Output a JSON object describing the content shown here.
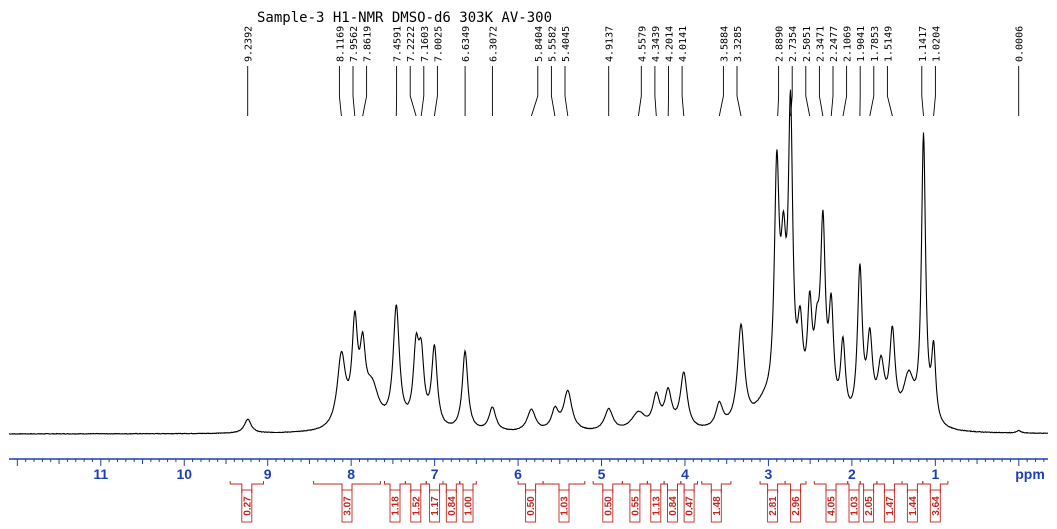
{
  "chart_data": {
    "type": "line",
    "title": "Sample-3   H1-NMR DMSO-d6 303K AV-300",
    "xlabel": "ppm",
    "ylabel": "",
    "xlim": [
      12.1,
      -0.35
    ],
    "x_reversed": true,
    "grid": false,
    "x_major_ticks": [
      "11",
      "10",
      "9",
      "8",
      "7",
      "6",
      "5",
      "4",
      "3",
      "2",
      "1",
      "ppm"
    ],
    "x_major_tick_values": [
      11,
      10,
      9,
      8,
      7,
      6,
      5,
      4,
      3,
      2,
      1
    ],
    "peak_labels": [
      "9.2392",
      "8.1169",
      "7.9562",
      "7.8619",
      "7.4591",
      "7.2222",
      "7.1603",
      "7.0025",
      "6.6349",
      "6.3072",
      "5.8404",
      "5.5582",
      "5.4045",
      "4.9137",
      "4.5579",
      "4.3439",
      "4.2014",
      "4.0141",
      "3.5884",
      "3.3285",
      "2.8890",
      "2.7354",
      "2.5051",
      "2.3471",
      "2.2477",
      "2.1069",
      "1.9041",
      "1.7853",
      "1.5149",
      "1.1417",
      "1.0204",
      "0.0006"
    ],
    "peak_label_groups": [
      [
        9.2392
      ],
      [
        8.1169,
        7.9562,
        7.8619
      ],
      [
        7.4591,
        7.2222,
        7.1603,
        7.0025
      ],
      [
        6.6349
      ],
      [
        6.3072
      ],
      [
        5.8404,
        5.5582,
        5.4045
      ],
      [
        4.9137
      ],
      [
        4.5579,
        4.3439,
        4.2014,
        4.0141
      ],
      [
        3.5884,
        3.3285
      ],
      [
        2.889,
        2.7354,
        2.5051,
        2.3471,
        2.2477,
        2.1069,
        1.9041,
        1.7853,
        1.5149
      ],
      [
        1.1417,
        1.0204
      ],
      [
        0.0006
      ]
    ],
    "integrals": [
      "0.27",
      "3.07",
      "1.18",
      "1.52",
      "1.17",
      "0.84",
      "1.00",
      "0.50",
      "1.03",
      "0.50",
      "0.55",
      "1.13",
      "0.84",
      "0.47",
      "1.48",
      "2.81",
      "2.96",
      "4.05",
      "1.03",
      "2.05",
      "1.47",
      "1.44",
      "3.64"
    ],
    "integral_ranges": [
      [
        9.45,
        9.05
      ],
      [
        8.45,
        7.65
      ],
      [
        7.6,
        7.35
      ],
      [
        7.35,
        7.1
      ],
      [
        7.1,
        6.9
      ],
      [
        6.9,
        6.7
      ],
      [
        6.7,
        6.5
      ],
      [
        6.0,
        5.7
      ],
      [
        5.7,
        5.2
      ],
      [
        5.1,
        4.75
      ],
      [
        4.75,
        4.45
      ],
      [
        4.45,
        4.25
      ],
      [
        4.25,
        4.05
      ],
      [
        4.05,
        3.85
      ],
      [
        3.8,
        3.45
      ],
      [
        3.1,
        2.8
      ],
      [
        2.8,
        2.55
      ],
      [
        2.45,
        2.05
      ],
      [
        2.05,
        1.9
      ],
      [
        1.9,
        1.7
      ],
      [
        1.7,
        1.4
      ],
      [
        1.4,
        1.15
      ],
      [
        1.15,
        0.85
      ]
    ],
    "spectrum_peaks": [
      {
        "ppm": 9.2392,
        "intensity": 0.035,
        "width": 0.05
      },
      {
        "ppm": 8.1169,
        "intensity": 0.18,
        "width": 0.06
      },
      {
        "ppm": 7.9562,
        "intensity": 0.24,
        "width": 0.04
      },
      {
        "ppm": 7.8619,
        "intensity": 0.16,
        "width": 0.04
      },
      {
        "ppm": 7.75,
        "intensity": 0.1,
        "width": 0.1
      },
      {
        "ppm": 7.4591,
        "intensity": 0.3,
        "width": 0.045
      },
      {
        "ppm": 7.2222,
        "intensity": 0.18,
        "width": 0.04
      },
      {
        "ppm": 7.1603,
        "intensity": 0.16,
        "width": 0.04
      },
      {
        "ppm": 7.0025,
        "intensity": 0.2,
        "width": 0.04
      },
      {
        "ppm": 6.6349,
        "intensity": 0.2,
        "width": 0.04
      },
      {
        "ppm": 6.3072,
        "intensity": 0.06,
        "width": 0.05
      },
      {
        "ppm": 5.8404,
        "intensity": 0.055,
        "width": 0.06
      },
      {
        "ppm": 5.5582,
        "intensity": 0.05,
        "width": 0.05
      },
      {
        "ppm": 5.4045,
        "intensity": 0.1,
        "width": 0.06
      },
      {
        "ppm": 4.9137,
        "intensity": 0.055,
        "width": 0.06
      },
      {
        "ppm": 4.5579,
        "intensity": 0.045,
        "width": 0.1
      },
      {
        "ppm": 4.3439,
        "intensity": 0.08,
        "width": 0.05
      },
      {
        "ppm": 4.2014,
        "intensity": 0.09,
        "width": 0.05
      },
      {
        "ppm": 4.0141,
        "intensity": 0.14,
        "width": 0.05
      },
      {
        "ppm": 3.5884,
        "intensity": 0.06,
        "width": 0.05
      },
      {
        "ppm": 3.3285,
        "intensity": 0.25,
        "width": 0.05
      },
      {
        "ppm": 3.05,
        "intensity": 0.05,
        "width": 0.15
      },
      {
        "ppm": 2.9,
        "intensity": 0.58,
        "width": 0.035
      },
      {
        "ppm": 2.82,
        "intensity": 0.34,
        "width": 0.04
      },
      {
        "ppm": 2.7354,
        "intensity": 0.73,
        "width": 0.032
      },
      {
        "ppm": 2.62,
        "intensity": 0.2,
        "width": 0.04
      },
      {
        "ppm": 2.5051,
        "intensity": 0.25,
        "width": 0.035
      },
      {
        "ppm": 2.42,
        "intensity": 0.16,
        "width": 0.04
      },
      {
        "ppm": 2.3471,
        "intensity": 0.46,
        "width": 0.035
      },
      {
        "ppm": 2.2477,
        "intensity": 0.26,
        "width": 0.035
      },
      {
        "ppm": 2.1069,
        "intensity": 0.19,
        "width": 0.035
      },
      {
        "ppm": 1.9041,
        "intensity": 0.38,
        "width": 0.035
      },
      {
        "ppm": 1.7853,
        "intensity": 0.2,
        "width": 0.04
      },
      {
        "ppm": 1.65,
        "intensity": 0.14,
        "width": 0.05
      },
      {
        "ppm": 1.5149,
        "intensity": 0.22,
        "width": 0.04
      },
      {
        "ppm": 1.32,
        "intensity": 0.12,
        "width": 0.08
      },
      {
        "ppm": 1.1417,
        "intensity": 0.72,
        "width": 0.03
      },
      {
        "ppm": 1.0204,
        "intensity": 0.18,
        "width": 0.03
      },
      {
        "ppm": 0.0006,
        "intensity": 0.006,
        "width": 0.03
      }
    ],
    "noise": 0.0015,
    "colors": {
      "spectrum": "#000000",
      "axis": "#1c3fb3",
      "integral": "#c0281f"
    }
  }
}
